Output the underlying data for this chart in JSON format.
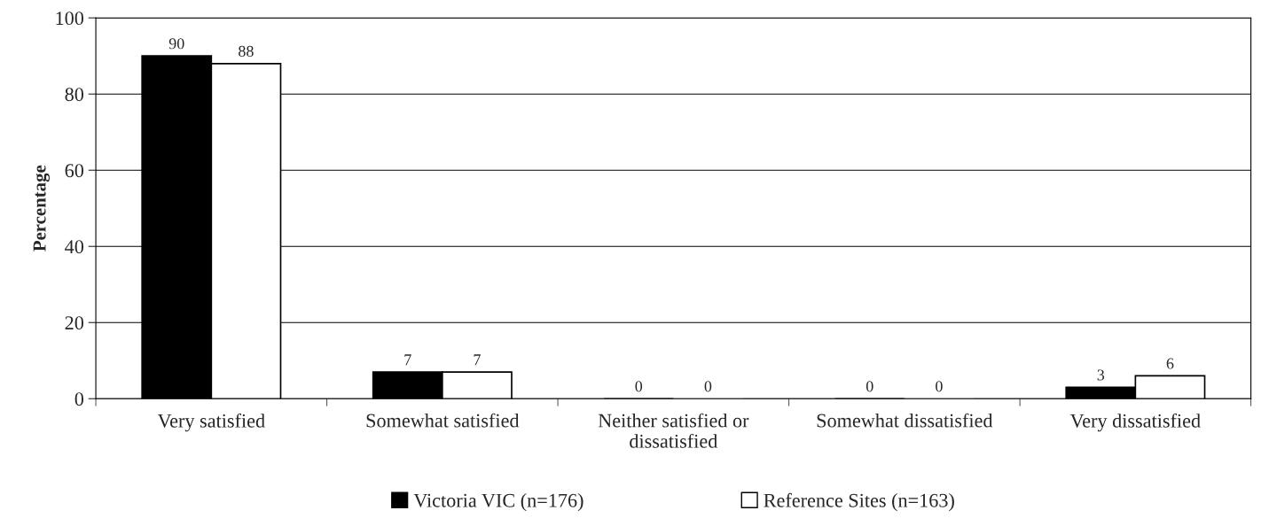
{
  "chart_data": {
    "type": "bar",
    "ylabel": "Percentage",
    "categories": [
      "Very satisfied",
      "Somewhat satisfied",
      "Neither satisfied or dissatisfied",
      "Somewhat dissatisfied",
      "Very dissatisfied"
    ],
    "series": [
      {
        "name": "Victoria VIC (n=176)",
        "color": "#000000",
        "values": [
          90,
          7,
          0,
          0,
          3
        ]
      },
      {
        "name": "Reference Sites (n=163)",
        "color": "#ffffff",
        "values": [
          88,
          7,
          0,
          0,
          6
        ]
      }
    ],
    "ylim": [
      0,
      100
    ],
    "yticks": [
      0,
      20,
      40,
      60,
      80,
      100
    ],
    "grid": "y",
    "legend": "bottom",
    "data_labels": true
  }
}
